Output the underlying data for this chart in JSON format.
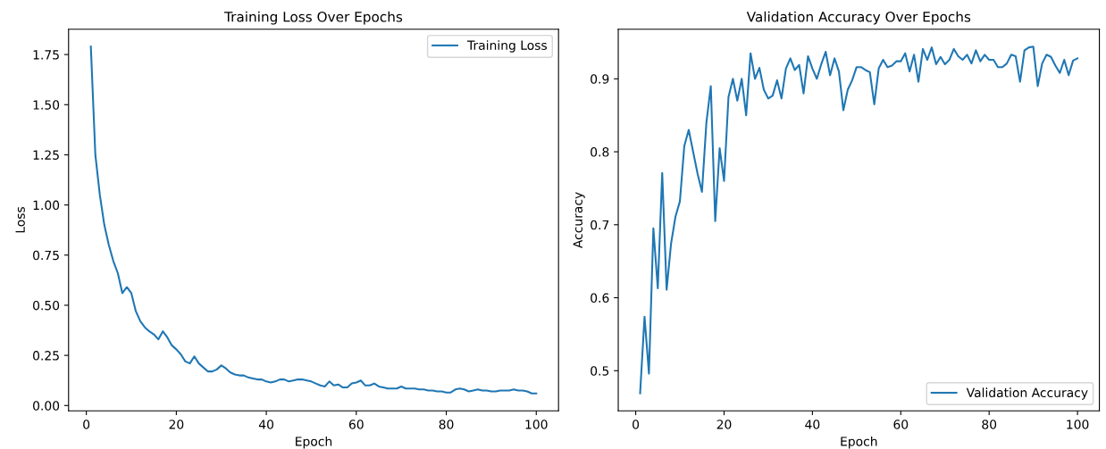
{
  "chart_data": [
    {
      "type": "line",
      "title": "Training Loss Over Epochs",
      "xlabel": "Epoch",
      "ylabel": "Loss",
      "legend": "top right",
      "grid": false,
      "xlim": [
        -3.95,
        104.95
      ],
      "xticks": [
        0,
        20,
        40,
        60,
        80,
        100
      ],
      "ylim": [
        -0.0265,
        1.8765
      ],
      "yticks": [
        {
          "value": 0,
          "label": "0.00"
        },
        {
          "value": 0.25,
          "label": "0.25"
        },
        {
          "value": 0.5,
          "label": "0.50"
        },
        {
          "value": 0.75,
          "label": "0.75"
        },
        {
          "value": 1,
          "label": "1.00"
        },
        {
          "value": 1.25,
          "label": "1.25"
        },
        {
          "value": 1.5,
          "label": "1.50"
        },
        {
          "value": 1.75,
          "label": "1.75"
        }
      ],
      "x": [
        1,
        2,
        3,
        4,
        5,
        6,
        7,
        8,
        9,
        10,
        11,
        12,
        13,
        14,
        15,
        16,
        17,
        18,
        19,
        20,
        21,
        22,
        23,
        24,
        25,
        26,
        27,
        28,
        29,
        30,
        31,
        32,
        33,
        34,
        35,
        36,
        37,
        38,
        39,
        40,
        41,
        42,
        43,
        44,
        45,
        46,
        47,
        48,
        49,
        50,
        51,
        52,
        53,
        54,
        55,
        56,
        57,
        58,
        59,
        60,
        61,
        62,
        63,
        64,
        65,
        66,
        67,
        68,
        69,
        70,
        71,
        72,
        73,
        74,
        75,
        76,
        77,
        78,
        79,
        80,
        81,
        82,
        83,
        84,
        85,
        86,
        87,
        88,
        89,
        90,
        91,
        92,
        93,
        94,
        95,
        96,
        97,
        98,
        99,
        100
      ],
      "series": [
        {
          "name": "Training Loss",
          "color": "#1f77b4",
          "values": [
            1.79,
            1.25,
            1.05,
            0.9,
            0.8,
            0.72,
            0.66,
            0.56,
            0.59,
            0.56,
            0.47,
            0.42,
            0.39,
            0.37,
            0.355,
            0.33,
            0.37,
            0.34,
            0.3,
            0.28,
            0.255,
            0.22,
            0.21,
            0.245,
            0.21,
            0.19,
            0.17,
            0.17,
            0.18,
            0.2,
            0.185,
            0.165,
            0.155,
            0.15,
            0.15,
            0.14,
            0.135,
            0.13,
            0.13,
            0.12,
            0.115,
            0.12,
            0.13,
            0.13,
            0.12,
            0.125,
            0.13,
            0.13,
            0.125,
            0.12,
            0.11,
            0.1,
            0.095,
            0.12,
            0.1,
            0.105,
            0.09,
            0.09,
            0.11,
            0.115,
            0.125,
            0.1,
            0.1,
            0.11,
            0.095,
            0.09,
            0.085,
            0.085,
            0.085,
            0.095,
            0.085,
            0.085,
            0.085,
            0.08,
            0.08,
            0.075,
            0.075,
            0.07,
            0.07,
            0.065,
            0.065,
            0.08,
            0.085,
            0.08,
            0.07,
            0.075,
            0.08,
            0.075,
            0.075,
            0.07,
            0.07,
            0.075,
            0.075,
            0.075,
            0.08,
            0.075,
            0.075,
            0.07,
            0.06,
            0.06
          ]
        }
      ]
    },
    {
      "type": "line",
      "title": "Validation Accuracy Over Epochs",
      "xlabel": "Epoch",
      "ylabel": "Accuracy",
      "legend": "bottom right",
      "grid": false,
      "xlim": [
        -3.95,
        104.95
      ],
      "xticks": [
        0,
        20,
        40,
        60,
        80,
        100
      ],
      "ylim": [
        0.445,
        0.968
      ],
      "yticks": [
        0.5,
        0.6,
        0.7,
        0.8,
        0.9
      ],
      "x": [
        1,
        2,
        3,
        4,
        5,
        6,
        7,
        8,
        9,
        10,
        11,
        12,
        13,
        14,
        15,
        16,
        17,
        18,
        19,
        20,
        21,
        22,
        23,
        24,
        25,
        26,
        27,
        28,
        29,
        30,
        31,
        32,
        33,
        34,
        35,
        36,
        37,
        38,
        39,
        40,
        41,
        42,
        43,
        44,
        45,
        46,
        47,
        48,
        49,
        50,
        51,
        52,
        53,
        54,
        55,
        56,
        57,
        58,
        59,
        60,
        61,
        62,
        63,
        64,
        65,
        66,
        67,
        68,
        69,
        70,
        71,
        72,
        73,
        74,
        75,
        76,
        77,
        78,
        79,
        80,
        81,
        82,
        83,
        84,
        85,
        86,
        87,
        88,
        89,
        90,
        91,
        92,
        93,
        94,
        95,
        96,
        97,
        98,
        99,
        100
      ],
      "series": [
        {
          "name": "Validation Accuracy",
          "color": "#1f77b4",
          "values": [
            0.469,
            0.574,
            0.496,
            0.695,
            0.613,
            0.771,
            0.611,
            0.674,
            0.711,
            0.732,
            0.808,
            0.83,
            0.8,
            0.77,
            0.745,
            0.84,
            0.89,
            0.705,
            0.805,
            0.76,
            0.875,
            0.9,
            0.87,
            0.9,
            0.85,
            0.935,
            0.9,
            0.915,
            0.885,
            0.873,
            0.877,
            0.898,
            0.873,
            0.914,
            0.928,
            0.912,
            0.919,
            0.88,
            0.931,
            0.914,
            0.9,
            0.92,
            0.937,
            0.905,
            0.928,
            0.91,
            0.857,
            0.885,
            0.898,
            0.916,
            0.916,
            0.912,
            0.909,
            0.865,
            0.914,
            0.926,
            0.916,
            0.918,
            0.924,
            0.924,
            0.935,
            0.91,
            0.933,
            0.896,
            0.941,
            0.926,
            0.943,
            0.92,
            0.93,
            0.92,
            0.926,
            0.941,
            0.931,
            0.926,
            0.933,
            0.921,
            0.939,
            0.924,
            0.933,
            0.926,
            0.926,
            0.916,
            0.916,
            0.921,
            0.933,
            0.931,
            0.896,
            0.939,
            0.943,
            0.944,
            0.89,
            0.921,
            0.933,
            0.93,
            0.918,
            0.908,
            0.926,
            0.905,
            0.925,
            0.928
          ]
        }
      ]
    }
  ]
}
